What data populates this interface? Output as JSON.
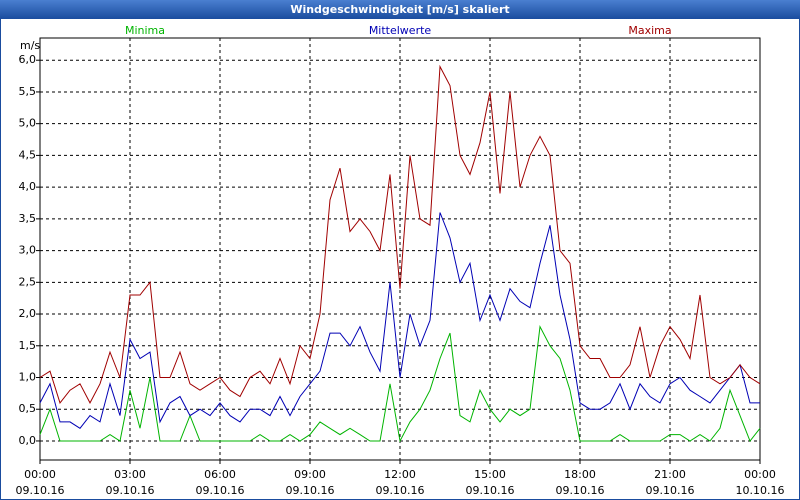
{
  "chart_data": {
    "type": "line",
    "title": "Windgeschwindigkeit [m/s] skaliert",
    "y_label": "m/s",
    "x": [
      0,
      20,
      40,
      60,
      80,
      100,
      120,
      140,
      160,
      180,
      200,
      220,
      240,
      260,
      280,
      300,
      320,
      340,
      360,
      380,
      400,
      420,
      440,
      460,
      480,
      500,
      520,
      540,
      560,
      580,
      600,
      620,
      640,
      660,
      680,
      700,
      720,
      740,
      760,
      780,
      800,
      820,
      840,
      860,
      880,
      900,
      920,
      940,
      960,
      980,
      1000,
      1020,
      1040,
      1060,
      1080,
      1100,
      1120,
      1140,
      1160,
      1180,
      1200,
      1220,
      1240,
      1260,
      1280,
      1300,
      1320,
      1340,
      1360,
      1380,
      1400,
      1420,
      1440
    ],
    "series": [
      {
        "name": "Minima",
        "color": "#00b400",
        "values": [
          0.1,
          0.5,
          0,
          0,
          0,
          0,
          0,
          0.1,
          0,
          0.8,
          0.2,
          1.0,
          0,
          0,
          0,
          0.4,
          0,
          0,
          0,
          0,
          0,
          0,
          0.1,
          0,
          0,
          0.1,
          0,
          0.1,
          0.3,
          0.2,
          0.1,
          0.2,
          0.1,
          0,
          0,
          0.9,
          0,
          0.3,
          0.5,
          0.8,
          1.3,
          1.7,
          0.4,
          0.3,
          0.8,
          0.5,
          0.3,
          0.5,
          0.4,
          0.5,
          1.8,
          1.5,
          1.3,
          0.8,
          0,
          0,
          0,
          0,
          0.1,
          0,
          0,
          0,
          0,
          0.1,
          0.1,
          0,
          0.1,
          0,
          0.2,
          0.8,
          0.4,
          0,
          0.2
        ]
      },
      {
        "name": "Mittelwerte",
        "color": "#0000b4",
        "values": [
          0.6,
          0.9,
          0.3,
          0.3,
          0.2,
          0.4,
          0.3,
          0.9,
          0.4,
          1.6,
          1.3,
          1.4,
          0.3,
          0.6,
          0.7,
          0.4,
          0.5,
          0.4,
          0.6,
          0.4,
          0.3,
          0.5,
          0.5,
          0.4,
          0.7,
          0.4,
          0.7,
          0.9,
          1.1,
          1.7,
          1.7,
          1.5,
          1.8,
          1.4,
          1.1,
          2.5,
          1.0,
          2.0,
          1.5,
          1.9,
          3.6,
          3.2,
          2.5,
          2.8,
          1.9,
          2.3,
          1.9,
          2.4,
          2.2,
          2.1,
          2.8,
          3.4,
          2.3,
          1.6,
          0.6,
          0.5,
          0.5,
          0.6,
          0.9,
          0.5,
          0.9,
          0.7,
          0.6,
          0.9,
          1.0,
          0.8,
          0.7,
          0.6,
          0.8,
          1.0,
          1.2,
          0.6,
          0.6
        ]
      },
      {
        "name": "Maxima",
        "color": "#a00000",
        "values": [
          1.0,
          1.1,
          0.6,
          0.8,
          0.9,
          0.6,
          0.9,
          1.4,
          1.0,
          2.3,
          2.3,
          2.5,
          1.0,
          1.0,
          1.4,
          0.9,
          0.8,
          0.9,
          1.0,
          0.8,
          0.7,
          1.0,
          1.1,
          0.9,
          1.3,
          0.9,
          1.5,
          1.3,
          2.0,
          3.8,
          4.3,
          3.3,
          3.5,
          3.3,
          3.0,
          4.2,
          2.4,
          4.5,
          3.5,
          3.4,
          5.9,
          5.6,
          4.5,
          4.2,
          4.7,
          5.5,
          3.9,
          5.5,
          4.0,
          4.5,
          4.8,
          4.5,
          3.0,
          2.8,
          1.5,
          1.3,
          1.3,
          1.0,
          1.0,
          1.2,
          1.8,
          1.0,
          1.5,
          1.8,
          1.6,
          1.3,
          2.3,
          1.0,
          0.9,
          1.0,
          1.2,
          1.0,
          0.9
        ]
      }
    ],
    "xlim": [
      0,
      1440
    ],
    "xticks": [
      {
        "value": 0,
        "label": "00:00"
      },
      {
        "value": 180,
        "label": "03:00"
      },
      {
        "value": 360,
        "label": "06:00"
      },
      {
        "value": 540,
        "label": "09:00"
      },
      {
        "value": 720,
        "label": "12:00"
      },
      {
        "value": 900,
        "label": "15:00"
      },
      {
        "value": 1080,
        "label": "18:00"
      },
      {
        "value": 1260,
        "label": "21:00"
      },
      {
        "value": 1440,
        "label": "00:00"
      }
    ],
    "xtick_dates": [
      "09.10.16",
      "09.10.16",
      "09.10.16",
      "09.10.16",
      "09.10.16",
      "09.10.16",
      "09.10.16",
      "09.10.16",
      "10.10.16"
    ],
    "ylim": [
      -0.3,
      6.35
    ],
    "yticks": [
      {
        "value": 0,
        "label": "0,0"
      },
      {
        "value": 0.5,
        "label": "0,5"
      },
      {
        "value": 1,
        "label": "1,0"
      },
      {
        "value": 1.5,
        "label": "1,5"
      },
      {
        "value": 2,
        "label": "2,0"
      },
      {
        "value": 2.5,
        "label": "2,5"
      },
      {
        "value": 3,
        "label": "3,0"
      },
      {
        "value": 3.5,
        "label": "3,5"
      },
      {
        "value": 4,
        "label": "4,0"
      },
      {
        "value": 4.5,
        "label": "4,5"
      },
      {
        "value": 5,
        "label": "5,0"
      },
      {
        "value": 5.5,
        "label": "5,5"
      },
      {
        "value": 6,
        "label": "6,0"
      }
    ],
    "grid": true
  }
}
